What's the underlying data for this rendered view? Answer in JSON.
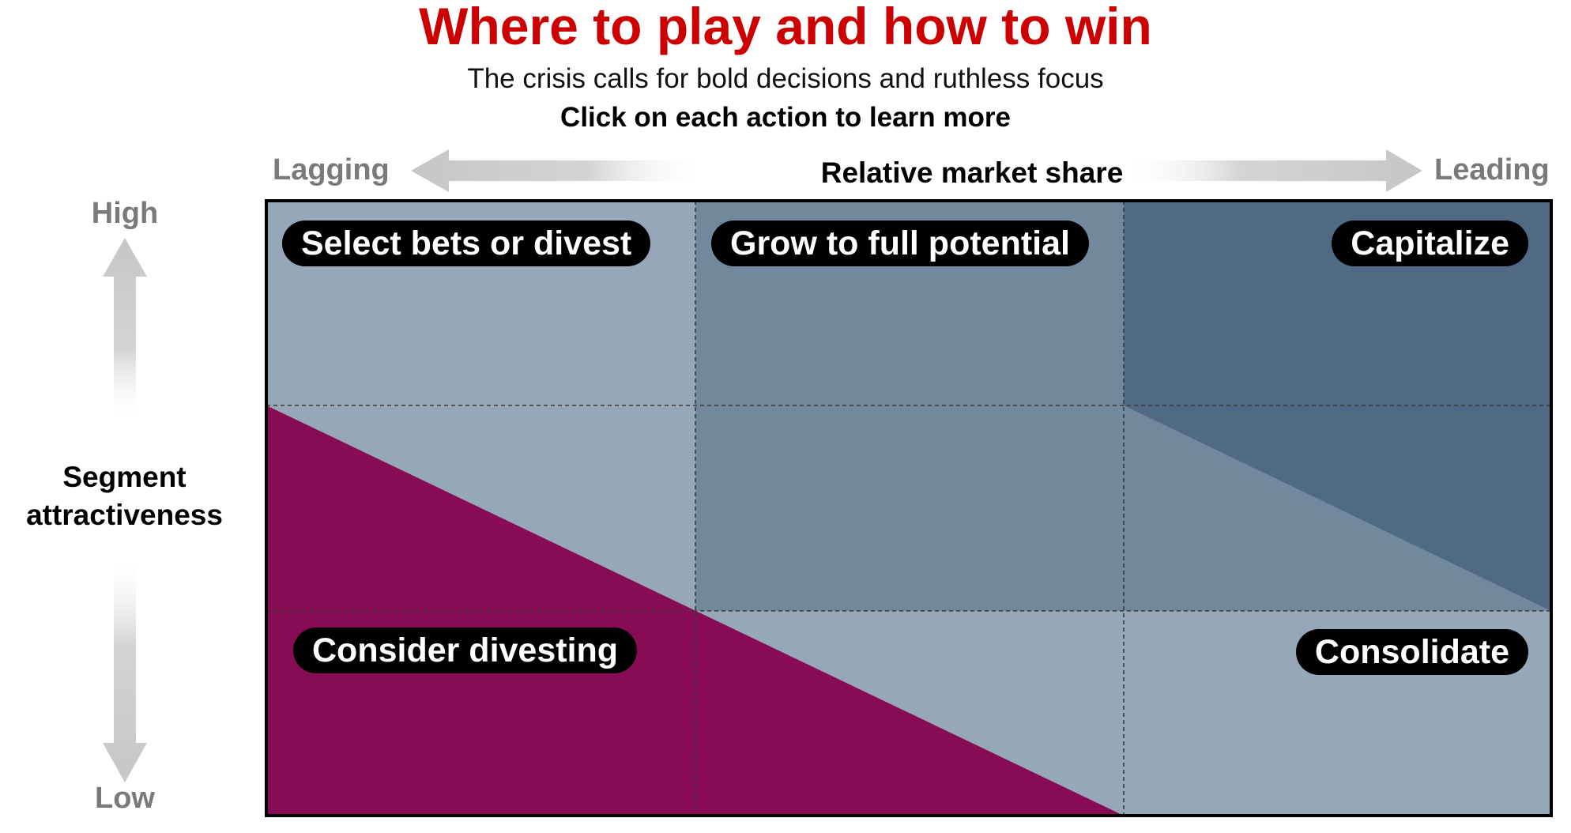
{
  "header": {
    "title": "Where to play and how to win",
    "subtitle": "The crisis calls for bold decisions and ruthless focus",
    "instruction": "Click on each action to learn more"
  },
  "x_axis": {
    "title": "Relative market share",
    "low_label": "Lagging",
    "high_label": "Leading"
  },
  "y_axis": {
    "title_line1": "Segment",
    "title_line2": "attractiveness",
    "high_label": "High",
    "low_label": "Low"
  },
  "actions": {
    "select_bets": "Select bets or divest",
    "grow": "Grow to full potential",
    "capitalize": "Capitalize",
    "consider_divesting": "Consider divesting",
    "consolidate": "Consolidate"
  },
  "colors": {
    "title": "#cc0000",
    "light_region": "#96a8b7",
    "mid_region": "#72889d",
    "dark_region": "#506a83",
    "divest_region": "#880c53",
    "arrow_gray": "#c6c6c6",
    "pill_bg": "#000000"
  }
}
